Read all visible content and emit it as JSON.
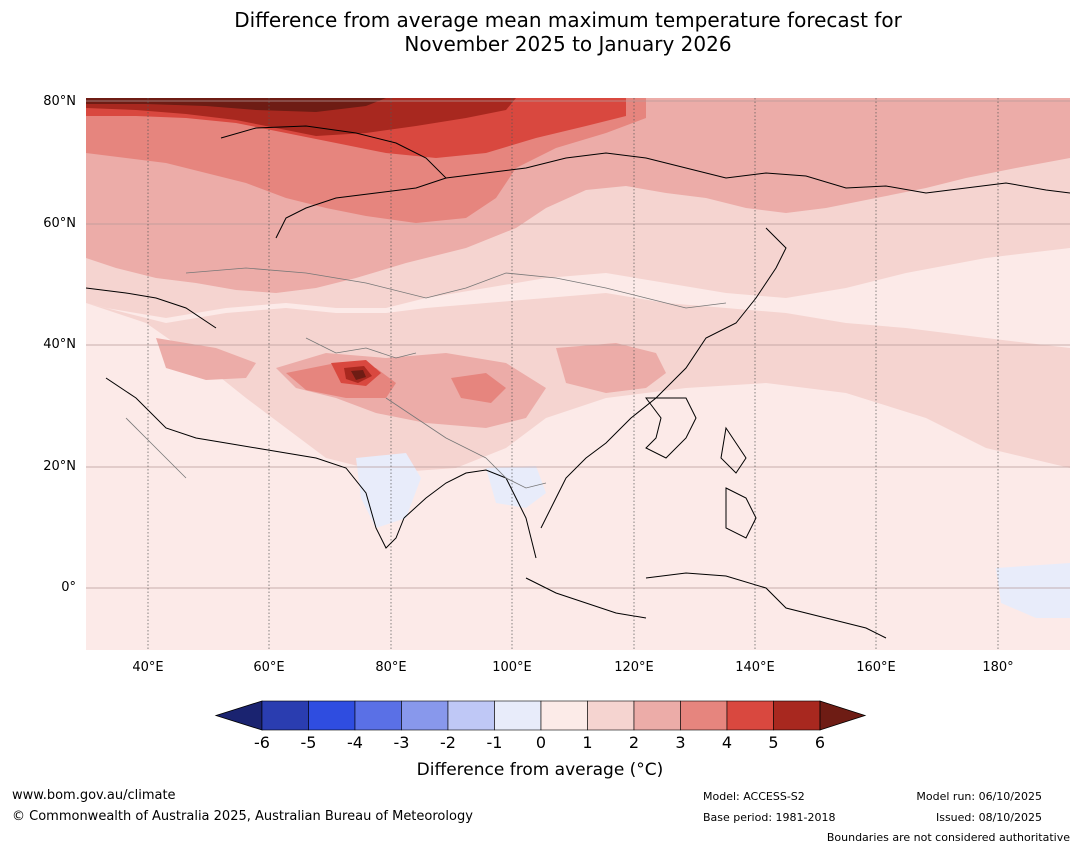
{
  "header": {
    "title_line1": "Difference from average mean maximum temperature forecast for",
    "title_line2": "November 2025 to January 2026"
  },
  "map": {
    "lat_labels": [
      "80°N",
      "60°N",
      "40°N",
      "20°N",
      "0°"
    ],
    "lon_labels": [
      "40°E",
      "60°E",
      "80°E",
      "100°E",
      "120°E",
      "140°E",
      "160°E",
      "180°"
    ]
  },
  "colorbar": {
    "ticks": [
      "-6",
      "-5",
      "-4",
      "-3",
      "-2",
      "-1",
      "0",
      "1",
      "2",
      "3",
      "4",
      "5",
      "6"
    ],
    "label": "Difference from average ($^\\circ$C)",
    "label_display": "Difference from average (°C)",
    "colors": [
      "#1a2370",
      "#2a3db0",
      "#2f4de0",
      "#5a70e6",
      "#8898ec",
      "#bfc8f6",
      "#e8ecfa",
      "#fcebe8",
      "#f5d4d0",
      "#ecaca8",
      "#e6857e",
      "#d9483f",
      "#a8281f",
      "#6e1c14"
    ]
  },
  "footer": {
    "website": "www.bom.gov.au/climate",
    "copyright": "© Commonwealth of Australia 2025, Australian Bureau of Meteorology",
    "model": "Model: ACCESS-S2",
    "base_period": "Base period: 1981-2018",
    "model_run": "Model run: 06/10/2025",
    "issued": "Issued: 08/10/2025",
    "disclaimer": "Boundaries are not considered authoritative"
  }
}
